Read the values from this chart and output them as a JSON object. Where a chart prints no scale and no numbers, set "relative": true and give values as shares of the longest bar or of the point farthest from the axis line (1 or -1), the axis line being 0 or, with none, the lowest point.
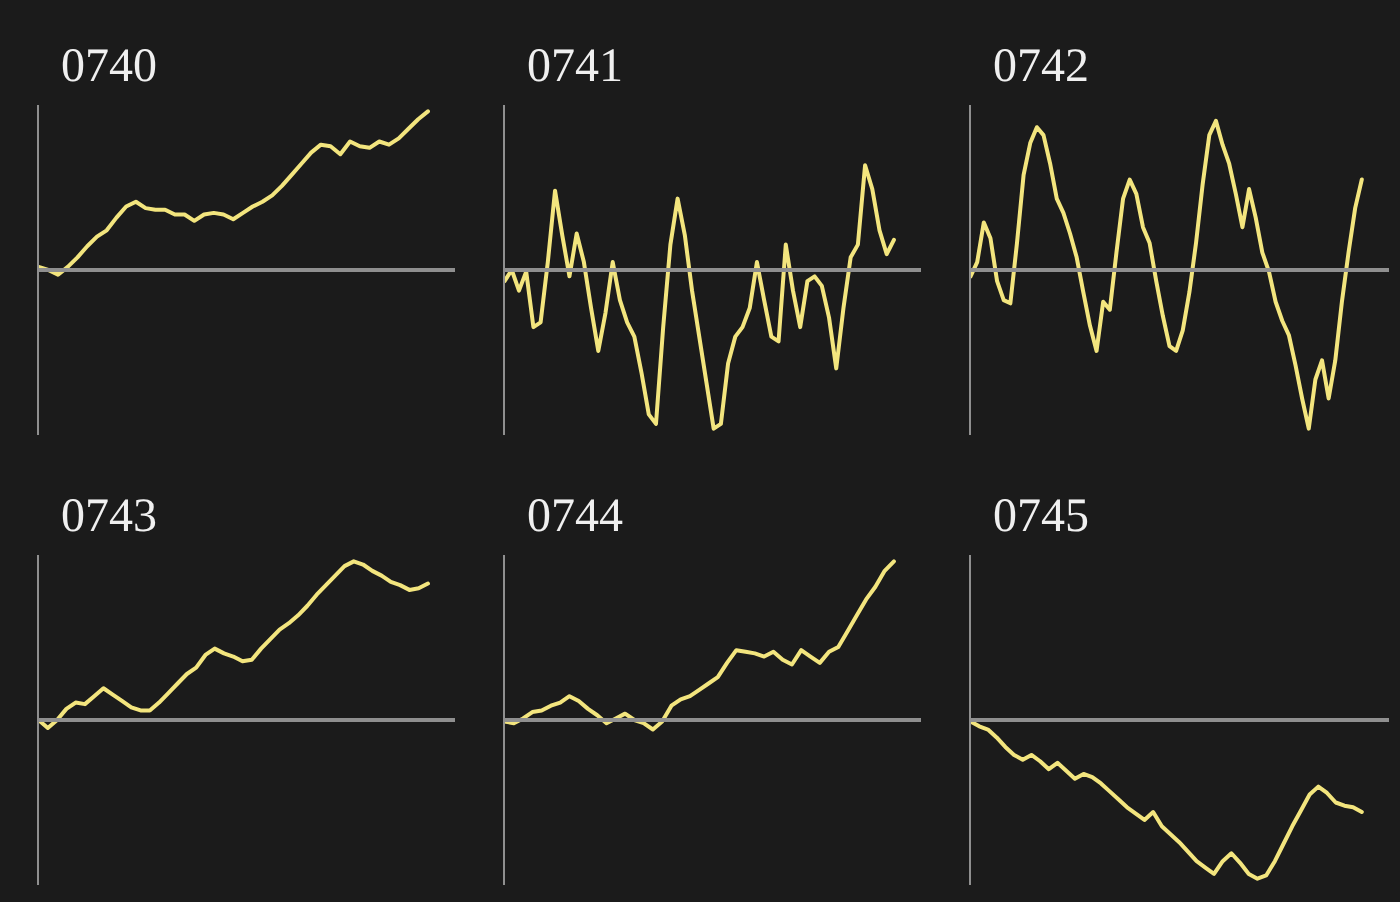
{
  "chart_data": [
    {
      "type": "line",
      "title": "0740",
      "relative": true,
      "color": "#f3e57e",
      "categories": [
        null,
        null,
        null,
        null,
        null,
        null,
        null,
        null,
        null,
        null,
        null,
        null,
        null,
        null,
        null,
        null,
        null,
        null,
        null,
        null,
        null,
        null,
        null,
        null,
        null,
        null,
        null,
        null,
        null,
        null,
        null,
        null,
        null,
        null,
        null,
        null,
        null,
        null,
        null,
        null,
        null
      ],
      "values": [
        0.02,
        0,
        -0.03,
        0.02,
        0.08,
        0.15,
        0.21,
        0.25,
        0.33,
        0.4,
        0.43,
        0.39,
        0.38,
        0.38,
        0.35,
        0.35,
        0.31,
        0.35,
        0.36,
        0.35,
        0.32,
        0.36,
        0.4,
        0.43,
        0.47,
        0.53,
        0.6,
        0.67,
        0.74,
        0.79,
        0.78,
        0.73,
        0.81,
        0.78,
        0.77,
        0.81,
        0.79,
        0.83,
        0.89,
        0.95,
        1
      ]
    },
    {
      "type": "line",
      "title": "0741",
      "relative": true,
      "color": "#f3e57e",
      "categories": [
        null,
        null,
        null,
        null,
        null,
        null,
        null,
        null,
        null,
        null,
        null,
        null,
        null,
        null,
        null,
        null,
        null,
        null,
        null,
        null,
        null,
        null,
        null,
        null,
        null,
        null,
        null,
        null,
        null,
        null,
        null,
        null,
        null,
        null,
        null,
        null,
        null,
        null,
        null,
        null,
        null,
        null,
        null,
        null,
        null,
        null,
        null,
        null,
        null,
        null,
        null,
        null,
        null,
        null,
        null
      ],
      "values": [
        -0.07,
        0,
        -0.13,
        -0.01,
        -0.36,
        -0.33,
        0.05,
        0.5,
        0.22,
        -0.04,
        0.23,
        0.05,
        -0.24,
        -0.51,
        -0.27,
        0.05,
        -0.19,
        -0.33,
        -0.42,
        -0.65,
        -0.91,
        -0.97,
        -0.36,
        0.16,
        0.45,
        0.22,
        -0.13,
        -0.42,
        -0.71,
        -1,
        -0.97,
        -0.59,
        -0.42,
        -0.36,
        -0.24,
        0.05,
        -0.19,
        -0.42,
        -0.45,
        0.16,
        -0.13,
        -0.36,
        -0.07,
        -0.04,
        -0.1,
        -0.3,
        -0.62,
        -0.24,
        0.08,
        0.16,
        0.66,
        0.51,
        0.25,
        0.1,
        0.19
      ]
    },
    {
      "type": "line",
      "title": "0742",
      "relative": true,
      "color": "#f3e57e",
      "categories": [
        null,
        null,
        null,
        null,
        null,
        null,
        null,
        null,
        null,
        null,
        null,
        null,
        null,
        null,
        null,
        null,
        null,
        null,
        null,
        null,
        null,
        null,
        null,
        null,
        null,
        null,
        null,
        null,
        null,
        null,
        null,
        null,
        null,
        null,
        null,
        null,
        null,
        null,
        null,
        null,
        null,
        null,
        null,
        null,
        null,
        null,
        null,
        null,
        null,
        null,
        null,
        null,
        null,
        null,
        null,
        null,
        null,
        null,
        null,
        null
      ],
      "values": [
        -0.04,
        0.05,
        0.3,
        0.2,
        -0.07,
        -0.19,
        -0.21,
        0.17,
        0.6,
        0.8,
        0.9,
        0.85,
        0.67,
        0.45,
        0.36,
        0.23,
        0.08,
        -0.14,
        -0.35,
        -0.51,
        -0.2,
        -0.25,
        0.11,
        0.45,
        0.57,
        0.48,
        0.27,
        0.17,
        -0.07,
        -0.29,
        -0.48,
        -0.51,
        -0.38,
        -0.14,
        0.17,
        0.54,
        0.85,
        0.94,
        0.79,
        0.67,
        0.48,
        0.27,
        0.51,
        0.33,
        0.11,
        -0.01,
        -0.2,
        -0.32,
        -0.41,
        -0.6,
        -0.81,
        -1,
        -0.69,
        -0.57,
        -0.81,
        -0.57,
        -0.2,
        0.11,
        0.39,
        0.57
      ]
    },
    {
      "type": "line",
      "title": "0743",
      "relative": true,
      "color": "#f3e57e",
      "categories": [
        null,
        null,
        null,
        null,
        null,
        null,
        null,
        null,
        null,
        null,
        null,
        null,
        null,
        null,
        null,
        null,
        null,
        null,
        null,
        null,
        null,
        null,
        null,
        null,
        null,
        null,
        null,
        null,
        null,
        null,
        null,
        null,
        null,
        null,
        null,
        null,
        null,
        null,
        null,
        null,
        null,
        null,
        null
      ],
      "values": [
        0,
        -0.05,
        0,
        0.07,
        0.11,
        0.1,
        0.15,
        0.2,
        0.16,
        0.12,
        0.08,
        0.06,
        0.06,
        0.11,
        0.17,
        0.23,
        0.29,
        0.33,
        0.41,
        0.45,
        0.42,
        0.4,
        0.37,
        0.38,
        0.45,
        0.51,
        0.57,
        0.61,
        0.66,
        0.72,
        0.79,
        0.85,
        0.91,
        0.97,
        1,
        0.98,
        0.94,
        0.91,
        0.87,
        0.85,
        0.82,
        0.83,
        0.86
      ]
    },
    {
      "type": "line",
      "title": "0744",
      "relative": true,
      "color": "#f3e57e",
      "categories": [
        null,
        null,
        null,
        null,
        null,
        null,
        null,
        null,
        null,
        null,
        null,
        null,
        null,
        null,
        null,
        null,
        null,
        null,
        null,
        null,
        null,
        null,
        null,
        null,
        null,
        null,
        null,
        null,
        null,
        null,
        null,
        null,
        null,
        null,
        null,
        null,
        null,
        null,
        null,
        null,
        null,
        null,
        null
      ],
      "values": [
        -0.01,
        -0.02,
        0.01,
        0.05,
        0.06,
        0.09,
        0.11,
        0.15,
        0.12,
        0.07,
        0.03,
        -0.02,
        0.01,
        0.04,
        0,
        -0.02,
        -0.06,
        -0.01,
        0.09,
        0.13,
        0.15,
        0.19,
        0.23,
        0.27,
        0.36,
        0.44,
        0.43,
        0.42,
        0.4,
        0.43,
        0.38,
        0.35,
        0.44,
        0.4,
        0.36,
        0.43,
        0.46,
        0.56,
        0.66,
        0.76,
        0.84,
        0.94,
        1
      ]
    },
    {
      "type": "line",
      "title": "0745",
      "relative": true,
      "color": "#f3e57e",
      "categories": [
        null,
        null,
        null,
        null,
        null,
        null,
        null,
        null,
        null,
        null,
        null,
        null,
        null,
        null,
        null,
        null,
        null,
        null,
        null,
        null,
        null,
        null,
        null,
        null,
        null,
        null,
        null,
        null,
        null,
        null,
        null,
        null,
        null,
        null,
        null,
        null,
        null,
        null,
        null,
        null,
        null,
        null,
        null,
        null,
        null,
        null
      ],
      "values": [
        -0.01,
        -0.04,
        -0.06,
        -0.11,
        -0.17,
        -0.22,
        -0.25,
        -0.22,
        -0.26,
        -0.31,
        -0.27,
        -0.32,
        -0.37,
        -0.34,
        -0.36,
        -0.4,
        -0.45,
        -0.5,
        -0.55,
        -0.59,
        -0.63,
        -0.58,
        -0.67,
        -0.72,
        -0.77,
        -0.83,
        -0.89,
        -0.93,
        -0.97,
        -0.89,
        -0.84,
        -0.9,
        -0.97,
        -1,
        -0.98,
        -0.89,
        -0.78,
        -0.67,
        -0.57,
        -0.47,
        -0.42,
        -0.46,
        -0.52,
        -0.54,
        -0.55,
        -0.58
      ]
    }
  ]
}
